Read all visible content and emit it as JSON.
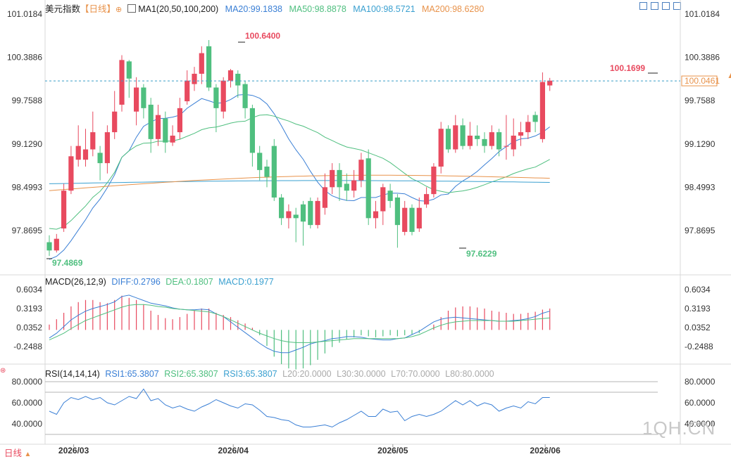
{
  "header": {
    "symbol": "美元指数",
    "period": "【日线】",
    "ma_label": "MA1(20,50,100,200)",
    "ma20": "MA20:99.1838",
    "ma50": "MA50:98.8878",
    "ma100": "MA100:98.5721",
    "ma200": "MA200:98.6280"
  },
  "macd_header": {
    "label": "MACD(26,12,9)",
    "diff": "DIFF:0.2796",
    "dea": "DEA:0.1807",
    "macd": "MACD:0.1977"
  },
  "rsi_header": {
    "label": "RSI(14,14,14)",
    "rsi1": "RSI1:65.3807",
    "rsi2": "RSI2:65.3807",
    "rsi3": "RSI3:65.3807",
    "l20": "L20:20.0000",
    "l30": "L30:30.0000",
    "l70": "L70:70.0000",
    "l80": "L80:80.0000"
  },
  "footer": {
    "period_button": "日线",
    "watermark": "1QH.CN"
  },
  "colors": {
    "up": "#e84a5f",
    "down": "#4fbf7f",
    "ma20": "#3a7fd5",
    "ma50": "#4fbf7f",
    "ma100": "#3aa0d0",
    "ma200": "#e8924a",
    "last_price": "#3a9ec7"
  },
  "chart_data": [
    {
      "type": "candlestick",
      "title": "美元指数 日线",
      "y_ticks": [
        "101.0184",
        "100.3886",
        "99.7588",
        "99.1290",
        "98.4993",
        "97.8695"
      ],
      "ylim": [
        97.2,
        101.2
      ],
      "x_ticks": [
        {
          "label": "2026/03",
          "index": 2
        },
        {
          "label": "2026/04",
          "index": 24
        },
        {
          "label": "2026/05",
          "index": 46
        },
        {
          "label": "2026/06",
          "index": 67
        }
      ],
      "high_label": "100.6400",
      "low_label_1": "97.4869",
      "low_label_2": "97.6229",
      "recent_high_label": "100.1699",
      "last_price_label": "100.0461",
      "last_price": 100.0461,
      "candles": [
        [
          97.7,
          97.58,
          97.8,
          97.5
        ],
        [
          97.58,
          97.75,
          97.82,
          97.55
        ],
        [
          97.9,
          98.45,
          98.55,
          97.85
        ],
        [
          98.45,
          98.95,
          99.1,
          98.4
        ],
        [
          98.9,
          99.1,
          99.4,
          98.8
        ],
        [
          98.9,
          99.05,
          99.35,
          98.8
        ],
        [
          99.05,
          99.3,
          99.6,
          98.95
        ],
        [
          99.0,
          98.85,
          99.1,
          98.6
        ],
        [
          98.85,
          99.3,
          99.4,
          98.7
        ],
        [
          99.3,
          99.6,
          99.9,
          99.2
        ],
        [
          99.7,
          100.35,
          100.42,
          99.6
        ],
        [
          100.33,
          100.08,
          100.35,
          99.8
        ],
        [
          99.6,
          99.95,
          100.1,
          99.4
        ],
        [
          99.95,
          99.65,
          100.0,
          99.5
        ],
        [
          99.7,
          99.2,
          99.8,
          99.0
        ],
        [
          99.2,
          99.55,
          99.7,
          99.1
        ],
        [
          99.5,
          99.15,
          99.6,
          99.0
        ],
        [
          99.15,
          99.25,
          99.4,
          99.1
        ],
        [
          99.3,
          99.65,
          99.8,
          99.2
        ],
        [
          99.75,
          100.05,
          100.2,
          99.7
        ],
        [
          100.0,
          100.15,
          100.25,
          99.9
        ],
        [
          100.15,
          100.45,
          100.55,
          100.0
        ],
        [
          100.55,
          99.95,
          100.64,
          99.9
        ],
        [
          99.95,
          99.65,
          100.0,
          99.3
        ],
        [
          99.6,
          100.05,
          100.1,
          99.5
        ],
        [
          100.05,
          100.2,
          100.22,
          99.95
        ],
        [
          100.15,
          99.98,
          100.2,
          99.8
        ],
        [
          100.0,
          99.65,
          100.05,
          99.5
        ],
        [
          99.65,
          99.0,
          99.7,
          98.8
        ],
        [
          99.0,
          98.75,
          99.1,
          98.6
        ],
        [
          98.8,
          98.65,
          98.9,
          98.5
        ],
        [
          99.1,
          98.35,
          99.2,
          98.3
        ],
        [
          98.35,
          98.05,
          98.4,
          97.95
        ],
        [
          98.05,
          98.15,
          98.25,
          97.9
        ],
        [
          98.1,
          98.05,
          98.2,
          97.7
        ],
        [
          98.25,
          98.0,
          98.3,
          97.65
        ],
        [
          98.3,
          97.95,
          98.35,
          97.9
        ],
        [
          97.95,
          98.3,
          98.35,
          97.9
        ],
        [
          98.2,
          98.5,
          98.7,
          98.1
        ],
        [
          98.5,
          98.75,
          98.85,
          98.4
        ],
        [
          98.75,
          98.5,
          98.85,
          98.3
        ],
        [
          98.55,
          98.45,
          98.7,
          98.3
        ],
        [
          98.45,
          98.6,
          98.75,
          98.35
        ],
        [
          98.6,
          98.9,
          99.0,
          98.5
        ],
        [
          98.92,
          98.05,
          99.05,
          97.95
        ],
        [
          98.05,
          98.15,
          98.3,
          97.9
        ],
        [
          98.15,
          98.5,
          98.55,
          97.95
        ],
        [
          98.45,
          98.3,
          98.55,
          98.2
        ],
        [
          98.35,
          97.95,
          98.4,
          97.62
        ],
        [
          97.85,
          98.2,
          98.3,
          97.8
        ],
        [
          98.2,
          97.85,
          98.25,
          97.8
        ],
        [
          97.9,
          98.2,
          98.35,
          97.85
        ],
        [
          98.25,
          98.4,
          98.5,
          98.2
        ],
        [
          98.4,
          98.8,
          98.85,
          98.35
        ],
        [
          98.8,
          99.35,
          99.45,
          98.7
        ],
        [
          99.35,
          99.05,
          99.4,
          99.0
        ],
        [
          99.05,
          99.4,
          99.55,
          99.0
        ],
        [
          99.4,
          99.1,
          99.5,
          99.05
        ],
        [
          99.1,
          99.25,
          99.45,
          99.05
        ],
        [
          99.25,
          99.2,
          99.4,
          99.1
        ],
        [
          99.2,
          99.1,
          99.3,
          99.0
        ],
        [
          99.1,
          99.3,
          99.4,
          99.05
        ],
        [
          99.3,
          99.05,
          99.35,
          98.95
        ],
        [
          99.1,
          99.1,
          99.55,
          98.9
        ],
        [
          99.05,
          99.25,
          99.5,
          98.95
        ],
        [
          99.25,
          99.3,
          99.45,
          99.1
        ],
        [
          99.3,
          99.45,
          99.55,
          99.2
        ],
        [
          99.55,
          99.45,
          99.6,
          99.3
        ],
        [
          99.2,
          100.03,
          100.17,
          99.15
        ],
        [
          99.98,
          100.05,
          100.09,
          99.9
        ]
      ],
      "ma_series": [
        {
          "name": "MA20",
          "start": 97.45,
          "end": 99.18
        },
        {
          "name": "MA50",
          "start": 97.9,
          "end": 98.89
        },
        {
          "name": "MA100",
          "start": 98.55,
          "end": 98.57
        },
        {
          "name": "MA200",
          "start": 98.45,
          "end": 98.63
        }
      ]
    },
    {
      "type": "bar+line",
      "title": "MACD(26,12,9)",
      "y_ticks": [
        "0.6034",
        "0.3193",
        "0.0352",
        "-0.2488"
      ],
      "ylim": [
        -0.45,
        0.75
      ],
      "macd_values": [
        0.05,
        0.1,
        0.16,
        0.22,
        0.26,
        0.28,
        0.28,
        0.26,
        0.25,
        0.28,
        0.32,
        0.3,
        0.28,
        0.24,
        0.18,
        0.14,
        0.11,
        0.1,
        0.12,
        0.15,
        0.18,
        0.2,
        0.2,
        0.16,
        0.14,
        0.12,
        0.09,
        0.06,
        0.02,
        -0.05,
        -0.15,
        -0.25,
        -0.32,
        -0.36,
        -0.37,
        -0.36,
        -0.33,
        -0.28,
        -0.22,
        -0.16,
        -0.12,
        -0.09,
        -0.07,
        -0.05,
        -0.06,
        -0.07,
        -0.06,
        -0.05,
        -0.06,
        -0.05,
        -0.04,
        -0.03,
        0.0,
        0.05,
        0.12,
        0.18,
        0.21,
        0.22,
        0.22,
        0.21,
        0.2,
        0.18,
        0.17,
        0.16,
        0.15,
        0.15,
        0.16,
        0.17,
        0.19,
        0.2
      ],
      "diff": [
        -0.12,
        -0.05,
        0.05,
        0.15,
        0.22,
        0.28,
        0.32,
        0.35,
        0.38,
        0.42,
        0.5,
        0.52,
        0.48,
        0.44,
        0.4,
        0.38,
        0.36,
        0.33,
        0.31,
        0.3,
        0.3,
        0.31,
        0.3,
        0.24,
        0.2,
        0.12,
        0.04,
        -0.04,
        -0.12,
        -0.2,
        -0.27,
        -0.32,
        -0.34,
        -0.34,
        -0.3,
        -0.26,
        -0.21,
        -0.18,
        -0.16,
        -0.13,
        -0.12,
        -0.1,
        -0.1,
        -0.11,
        -0.13,
        -0.14,
        -0.15,
        -0.15,
        -0.13,
        -0.12,
        -0.07,
        -0.02,
        0.05,
        0.12,
        0.16,
        0.18,
        0.19,
        0.18,
        0.17,
        0.16,
        0.15,
        0.14,
        0.13,
        0.13,
        0.14,
        0.15,
        0.17,
        0.2,
        0.25,
        0.28
      ],
      "dea": [
        -0.15,
        -0.1,
        -0.05,
        0.02,
        0.08,
        0.14,
        0.18,
        0.22,
        0.26,
        0.3,
        0.34,
        0.37,
        0.38,
        0.38,
        0.37,
        0.35,
        0.34,
        0.32,
        0.31,
        0.3,
        0.29,
        0.28,
        0.27,
        0.24,
        0.2,
        0.15,
        0.1,
        0.05,
        0.0,
        -0.05,
        -0.09,
        -0.13,
        -0.16,
        -0.18,
        -0.19,
        -0.19,
        -0.19,
        -0.18,
        -0.17,
        -0.16,
        -0.15,
        -0.14,
        -0.13,
        -0.13,
        -0.13,
        -0.13,
        -0.13,
        -0.13,
        -0.13,
        -0.12,
        -0.1,
        -0.07,
        -0.02,
        0.03,
        0.07,
        0.1,
        0.12,
        0.13,
        0.14,
        0.14,
        0.14,
        0.14,
        0.13,
        0.13,
        0.13,
        0.14,
        0.15,
        0.16,
        0.17,
        0.18
      ]
    },
    {
      "type": "line",
      "title": "RSI(14,14,14)",
      "y_ticks": [
        "80.0000",
        "60.0000",
        "40.0000"
      ],
      "ylim": [
        20,
        88
      ],
      "levels": [
        20,
        30,
        70,
        80
      ],
      "values": [
        52,
        49,
        60,
        65,
        63,
        66,
        63,
        65,
        60,
        58,
        62,
        66,
        64,
        73,
        62,
        64,
        58,
        55,
        57,
        54,
        52,
        56,
        59,
        63,
        60,
        57,
        55,
        59,
        58,
        53,
        47,
        46,
        44,
        43,
        39,
        37,
        37,
        38,
        39,
        37,
        41,
        44,
        48,
        52,
        47,
        47,
        54,
        51,
        52,
        43,
        47,
        49,
        47,
        49,
        52,
        57,
        62,
        58,
        62,
        57,
        60,
        58,
        52,
        55,
        57,
        55,
        61,
        59,
        65,
        65
      ]
    }
  ]
}
